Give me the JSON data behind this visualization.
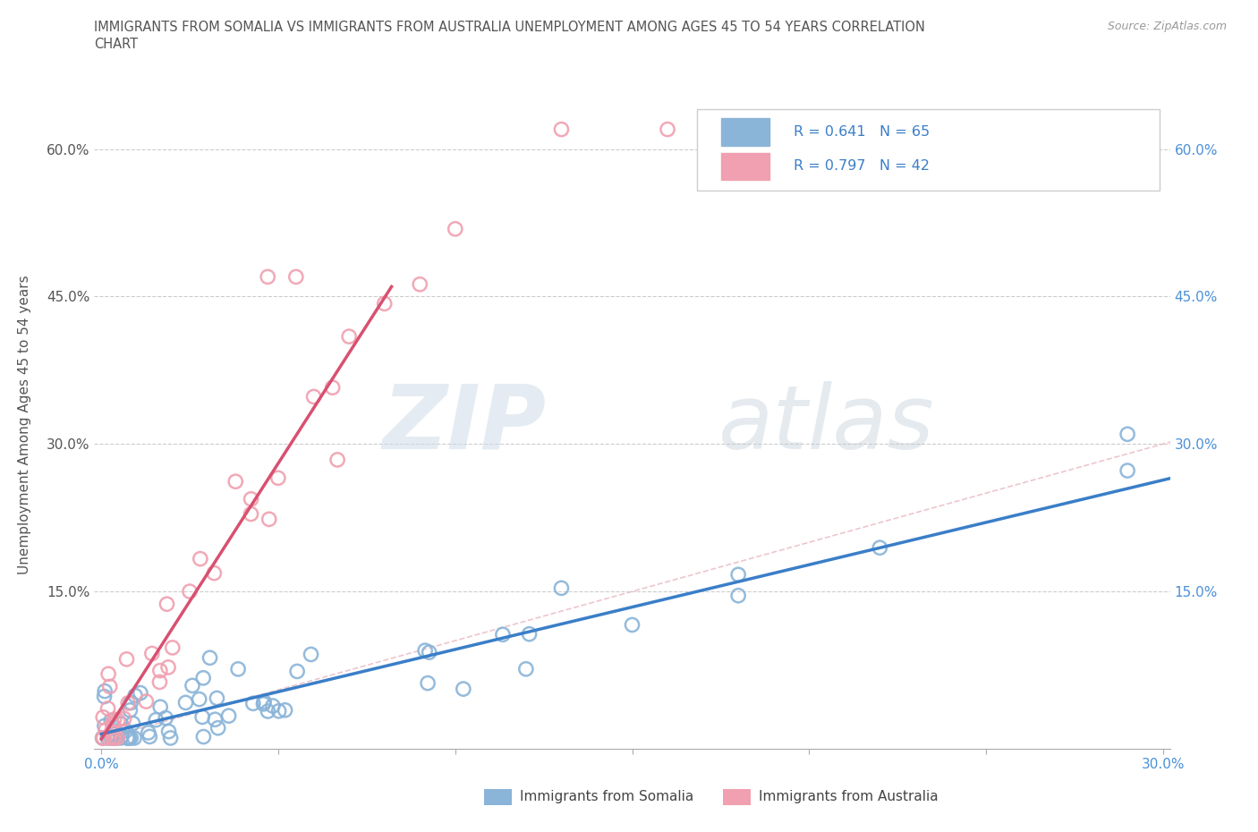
{
  "title_line1": "IMMIGRANTS FROM SOMALIA VS IMMIGRANTS FROM AUSTRALIA UNEMPLOYMENT AMONG AGES 45 TO 54 YEARS CORRELATION",
  "title_line2": "CHART",
  "source": "Source: ZipAtlas.com",
  "ylabel": "Unemployment Among Ages 45 to 54 years",
  "xlim": [
    -0.002,
    0.302
  ],
  "ylim": [
    -0.01,
    0.65
  ],
  "xtick_vals": [
    0.0,
    0.05,
    0.1,
    0.15,
    0.2,
    0.25,
    0.3
  ],
  "xticklabels": [
    "0.0%",
    "",
    "",
    "",
    "",
    "",
    "30.0%"
  ],
  "ytick_vals": [
    0.0,
    0.15,
    0.3,
    0.45,
    0.6
  ],
  "yticklabels_left": [
    "",
    "15.0%",
    "30.0%",
    "45.0%",
    "60.0%"
  ],
  "yticklabels_right": [
    "",
    "15.0%",
    "30.0%",
    "45.0%",
    "60.0%"
  ],
  "somalia_dot_color": "#8ab4d8",
  "australia_dot_color": "#f0a0b0",
  "somalia_R": 0.641,
  "somalia_N": 65,
  "australia_R": 0.797,
  "australia_N": 42,
  "somalia_line_color": "#3a7ec8",
  "australia_line_color": "#d85070",
  "diag_line_color": "#e8b8c0",
  "legend_label_somalia": "Immigrants from Somalia",
  "legend_label_australia": "Immigrants from Australia",
  "watermark_zip": "ZIP",
  "watermark_atlas": "atlas",
  "grid_color": "#cccccc",
  "right_tick_color": "#4a90d9",
  "bottom_tick_color": "#4a90d9",
  "title_color": "#555555",
  "ylabel_color": "#555555",
  "legend_r_n_color": "#3a7ec8",
  "somalia_line_x": [
    0.0,
    0.302
  ],
  "somalia_line_y": [
    0.005,
    0.265
  ],
  "australia_line_x": [
    0.0,
    0.082
  ],
  "australia_line_y": [
    0.0,
    0.46
  ]
}
